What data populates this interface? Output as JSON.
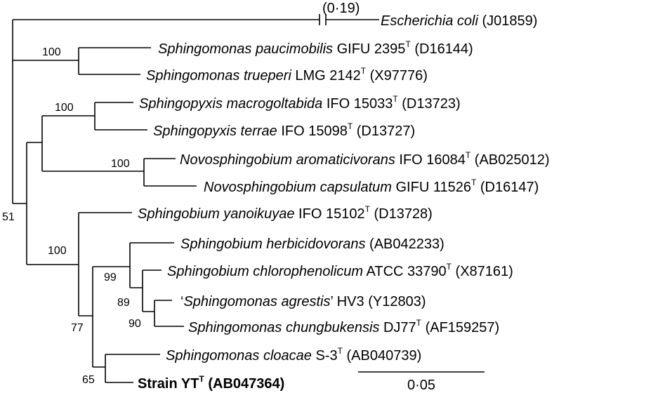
{
  "taxa": [
    {
      "id": "ecoli",
      "name": "Escherichia coli",
      "strain": "",
      "type_T": false,
      "accession": "(J01859)"
    },
    {
      "id": "s-paucimobilis",
      "name": "Sphingomonas paucimobilis",
      "strain": "GIFU 2395",
      "type_T": true,
      "accession": "(D16144)"
    },
    {
      "id": "s-trueperi",
      "name": "Sphingomonas trueperi",
      "strain": "LMG 2142",
      "type_T": true,
      "accession": "(X97776)"
    },
    {
      "id": "sp-macrogoltabida",
      "name": "Sphingopyxis macrogoltabida",
      "strain": "IFO 15033",
      "type_T": true,
      "accession": "(D13723)"
    },
    {
      "id": "sp-terrae",
      "name": "Sphingopyxis terrae",
      "strain": "IFO 15098",
      "type_T": true,
      "accession": "(D13727)"
    },
    {
      "id": "n-aromaticivorans",
      "name": "Novosphingobium aromaticivorans",
      "strain": "IFO 16084",
      "type_T": true,
      "accession": "(AB025012)"
    },
    {
      "id": "n-capsulatum",
      "name": "Novosphingobium capsulatum",
      "strain": "GIFU 11526",
      "type_T": true,
      "accession": "(D16147)"
    },
    {
      "id": "sb-yanoikuyae",
      "name": "Sphingobium yanoikuyae",
      "strain": "IFO 15102",
      "type_T": true,
      "accession": "(D13728)"
    },
    {
      "id": "sb-herbicidovorans",
      "name": "Sphingobium herbicidovorans",
      "strain": "",
      "type_T": false,
      "accession": "(AB042233)"
    },
    {
      "id": "sb-chlorophenolicum",
      "name": "Sphingobium chlorophenolicum",
      "strain": "ATCC 33790",
      "type_T": true,
      "accession": "(X87161)"
    },
    {
      "id": "s-agrestis",
      "name": "Sphingomonas agrestis",
      "strain": "HV3",
      "type_T": false,
      "accession": "(Y12803)",
      "quoted": true,
      "open_quote": "‘",
      "close_quote": "’"
    },
    {
      "id": "s-chungbukensis",
      "name": "Sphingomonas chungbukensis",
      "strain": "DJ77",
      "type_T": true,
      "accession": "(AF159257)"
    },
    {
      "id": "s-cloacae",
      "name": "Sphingomonas cloacae",
      "strain": "S-3",
      "type_T": true,
      "accession": "(AB040739)"
    },
    {
      "id": "strain-yt",
      "name": "",
      "strain": "Strain YT",
      "type_T": true,
      "accession": "(AB047364)",
      "bold": true
    }
  ],
  "type_marker": "T",
  "bootstrap": [
    {
      "id": "b-paucimobilis",
      "value": "100"
    },
    {
      "id": "b-sphingopyxis",
      "value": "100"
    },
    {
      "id": "b-novosphingobium",
      "value": "100"
    },
    {
      "id": "b-root",
      "value": "51"
    },
    {
      "id": "b-sphingobium",
      "value": "100"
    },
    {
      "id": "b-herbicidovorans",
      "value": "99"
    },
    {
      "id": "b-chlorophenolicum",
      "value": "89"
    },
    {
      "id": "b-agrestis",
      "value": "90"
    },
    {
      "id": "b-inner",
      "value": "77"
    },
    {
      "id": "b-cloacae",
      "value": "65"
    }
  ],
  "ecoli_branch_length": "(0·19)",
  "scale_bar": {
    "label": "0·05",
    "value": 0.05
  }
}
